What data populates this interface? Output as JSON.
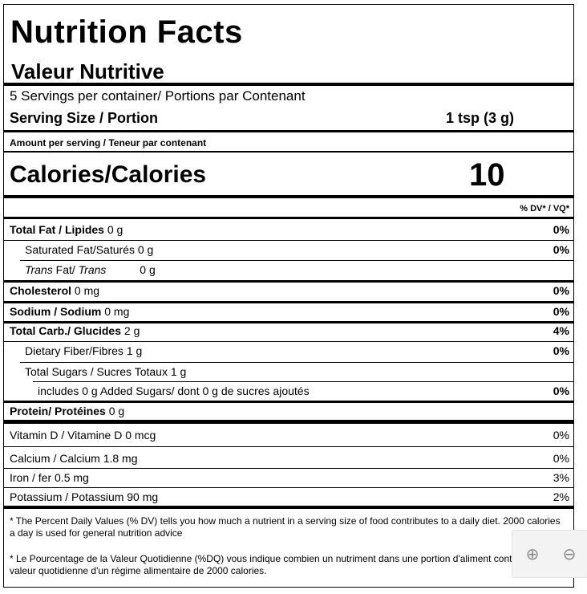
{
  "label": {
    "title": "Nutrition Facts",
    "subtitle": "Valeur Nutritive",
    "servings_per_container": "5 Servings per container/ Portions par Contenant",
    "serving_size_label": "Serving Size / Portion",
    "serving_size_value": "1 tsp (3 g)",
    "amount_per_serving": "Amount per serving / Teneur par contenant",
    "calories_label": "Calories/Calories",
    "calories_value": "10",
    "dv_header": "% DV* / VQ*"
  },
  "nutrients": {
    "total_fat": {
      "name": "Total Fat / Lipides",
      "amount": "0 g",
      "dv": "0%"
    },
    "saturated_fat": {
      "name": "Saturated Fat/Saturés",
      "amount": "0 g",
      "dv": "0%"
    },
    "trans_fat": {
      "name": "Trans",
      "name2": " Fat/ ",
      "name3": "Trans",
      "amount": "0 g"
    },
    "cholesterol": {
      "name": "Cholesterol",
      "amount": "0 mg",
      "dv": "0%"
    },
    "sodium": {
      "name": "Sodium / Sodium",
      "amount": "0 mg",
      "dv": "0%"
    },
    "total_carb": {
      "name": "Total Carb./ Glucides",
      "amount": "2 g",
      "dv": "4%"
    },
    "fiber": {
      "name": "Dietary Fiber/Fibres",
      "amount": "1 g",
      "dv": "0%"
    },
    "total_sugars": {
      "name": "Total Sugars / Sucres Totaux",
      "amount": "1 g"
    },
    "added_sugars": {
      "name": "includes 0 g Added Sugars/ dont 0 g de sucres ajoutés",
      "dv": "0%"
    },
    "protein": {
      "name": "Protein/ Protéines",
      "amount": "0 g"
    }
  },
  "vitamins": {
    "vitamin_d": {
      "text": "Vitamin D / Vitamine D 0 mcg",
      "dv": "0%"
    },
    "calcium": {
      "text": "Calcium / Calcium 1.8 mg",
      "dv": "0%"
    },
    "iron": {
      "text": "Iron / fer 0.5 mg",
      "dv": "3%"
    },
    "potassium": {
      "text": "Potassium / Potassium 90 mg",
      "dv": "2%"
    }
  },
  "footnotes": {
    "en": "* The Percent Daily Values (% DV) tells you how much a nutrient in a serving size of food contributes to a daily diet. 2000 calories a day is used for general nutrition advice",
    "fr": "* Le Pourcentage de la Valeur Quotidienne (%DQ) vous indique combien un nutriment dans une portion d'aliment contribue à la valeur quotidienne d'un régime alimentaire de 2000 calories."
  },
  "zoom": {
    "zoom_in_icon": "⊕",
    "zoom_out_icon": "⊖"
  }
}
